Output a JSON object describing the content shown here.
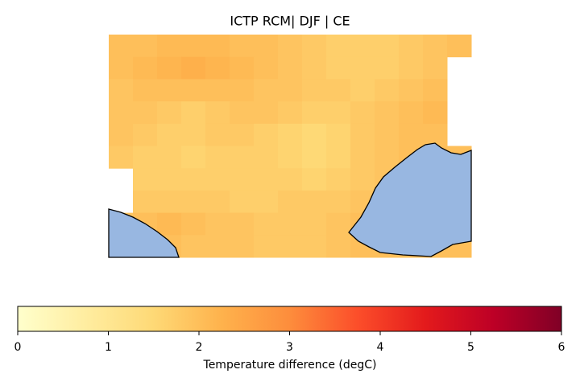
{
  "chart_data": {
    "type": "heatmap",
    "title": "ICTP RCM| DJF | CE",
    "grid": [
      [
        2.0,
        2.0,
        2.1,
        2.1,
        2.1,
        2.0,
        2.0,
        1.9,
        1.8,
        1.7,
        1.7,
        1.7,
        1.8,
        1.9,
        2.0
      ],
      [
        2.0,
        2.1,
        2.2,
        2.3,
        2.2,
        2.1,
        2.0,
        1.9,
        1.8,
        1.7,
        1.7,
        1.7,
        1.8,
        1.9,
        null
      ],
      [
        1.9,
        2.0,
        2.0,
        2.0,
        2.0,
        2.0,
        1.9,
        1.9,
        1.8,
        1.8,
        1.7,
        1.8,
        1.9,
        2.0,
        null
      ],
      [
        1.9,
        1.9,
        1.8,
        1.7,
        1.8,
        1.9,
        1.9,
        1.8,
        1.7,
        1.7,
        1.8,
        1.9,
        2.0,
        2.1,
        null
      ],
      [
        1.9,
        1.8,
        1.7,
        1.7,
        1.8,
        1.8,
        1.7,
        1.6,
        1.5,
        1.6,
        1.8,
        1.9,
        2.0,
        2.0,
        null
      ],
      [
        1.8,
        1.7,
        1.7,
        1.6,
        1.7,
        1.7,
        1.7,
        1.6,
        1.5,
        1.6,
        1.8,
        1.9,
        2.0,
        2.0,
        2.0
      ],
      [
        null,
        1.7,
        1.7,
        1.7,
        1.7,
        1.7,
        1.7,
        1.7,
        1.6,
        1.7,
        1.8,
        1.9,
        2.0,
        2.0,
        2.0
      ],
      [
        null,
        1.8,
        1.8,
        1.8,
        1.8,
        1.7,
        1.7,
        1.8,
        1.8,
        1.8,
        1.9,
        2.0,
        2.0,
        2.0,
        2.0
      ],
      [
        1.9,
        2.0,
        2.1,
        2.0,
        1.9,
        1.9,
        1.8,
        1.8,
        1.8,
        1.9,
        2.0,
        2.0,
        2.0,
        2.0,
        2.0
      ],
      [
        1.9,
        2.0,
        2.0,
        1.9,
        1.9,
        1.9,
        1.8,
        1.8,
        1.8,
        1.9,
        2.0,
        2.0,
        2.0,
        2.0,
        2.0
      ]
    ],
    "colorbar": {
      "label": "Temperature difference (degC)",
      "lim": [
        0,
        6
      ],
      "ticks": [
        0,
        1,
        2,
        3,
        4,
        5,
        6
      ],
      "colors": [
        "#ffffcc",
        "#ffeda0",
        "#fed976",
        "#feb24c",
        "#fd8d3c",
        "#fc4e2a",
        "#e31a1c",
        "#bd0026",
        "#800026"
      ]
    }
  }
}
